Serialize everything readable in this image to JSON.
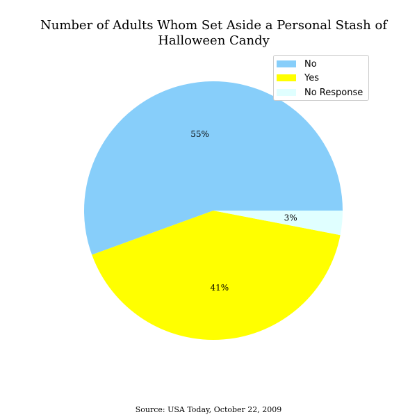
{
  "chart_data": {
    "type": "pie",
    "title": "Number of Adults Whom Set Aside a Personal Stash of\nHalloween Candy",
    "slices": [
      {
        "label": "No",
        "value": 55,
        "display": "55%",
        "color": "#87cefa"
      },
      {
        "label": "Yes",
        "value": 41,
        "display": "41%",
        "color": "#ffff00"
      },
      {
        "label": "No Response",
        "value": 3,
        "display": "3%",
        "color": "#e0ffff"
      }
    ],
    "legend_position": "top-right",
    "source": "Source: USA Today, October 22, 2009"
  }
}
